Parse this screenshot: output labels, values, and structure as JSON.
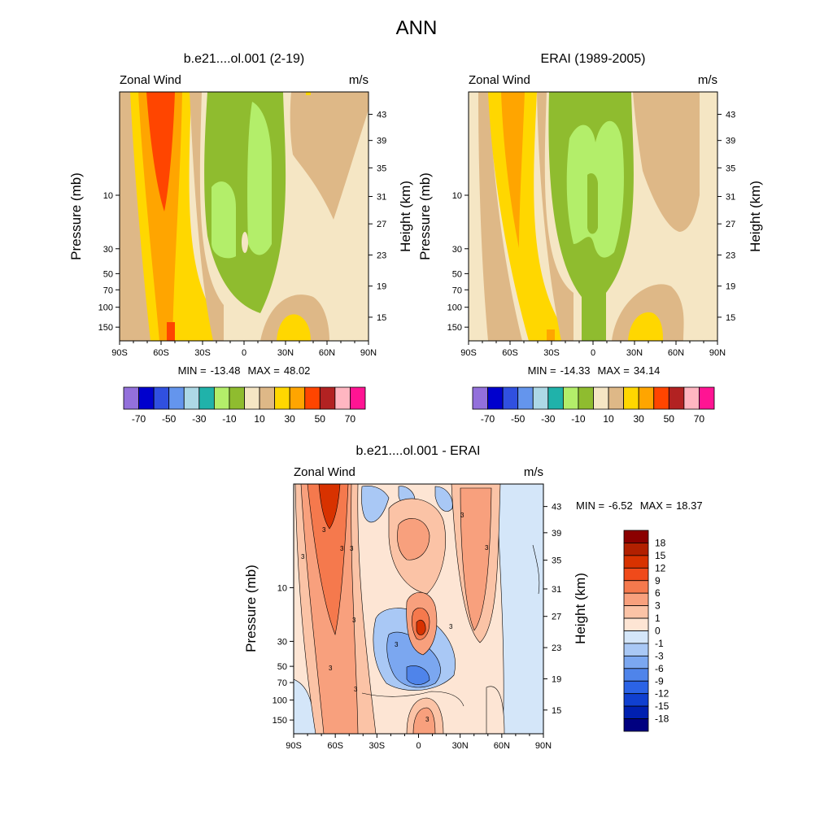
{
  "figure_title": "ANN",
  "contour_label": "3",
  "chart_data": [
    {
      "type": "heatmap",
      "panel_title": "b.e21....ol.001 (2-19)",
      "left_label": "Zonal Wind",
      "right_label": "m/s",
      "xlabel": "",
      "ylabel": "Pressure (mb)",
      "y2label": "Height (km)",
      "x_ticks": [
        "90S",
        "60S",
        "30S",
        "0",
        "30N",
        "60N",
        "90N"
      ],
      "y_ticks": [
        "10",
        "30",
        "50",
        "70",
        "100",
        "150"
      ],
      "y2_ticks": [
        "43",
        "39",
        "35",
        "31",
        "27",
        "23",
        "19",
        "15"
      ],
      "stats": {
        "min_label": "MIN =",
        "min": "-13.48",
        "max_label": "MAX =",
        "max": "48.02"
      },
      "colorbar": {
        "orientation": "horizontal",
        "labels": [
          "-70",
          "-50",
          "-30",
          "-10",
          "10",
          "30",
          "50",
          "70"
        ],
        "colors": [
          "#9370db",
          "#0000cd",
          "#3050e0",
          "#6495ed",
          "#add8e6",
          "#20b2aa",
          "#b3ee6a",
          "#8fbc2f",
          "#f5e6c4",
          "#deb887",
          "#ffd700",
          "#ffa500",
          "#ff4500",
          "#b22222",
          "#ffb6c1",
          "#ff1493"
        ]
      }
    },
    {
      "type": "heatmap",
      "panel_title": "ERAI (1989-2005)",
      "left_label": "Zonal Wind",
      "right_label": "m/s",
      "xlabel": "",
      "ylabel": "Pressure (mb)",
      "y2label": "Height (km)",
      "x_ticks": [
        "90S",
        "60S",
        "30S",
        "0",
        "30N",
        "60N",
        "90N"
      ],
      "y_ticks": [
        "10",
        "30",
        "50",
        "70",
        "100",
        "150"
      ],
      "y2_ticks": [
        "43",
        "39",
        "35",
        "31",
        "27",
        "23",
        "19",
        "15"
      ],
      "stats": {
        "min_label": "MIN =",
        "min": "-14.33",
        "max_label": "MAX =",
        "max": "34.14"
      },
      "colorbar": {
        "orientation": "horizontal",
        "labels": [
          "-70",
          "-50",
          "-30",
          "-10",
          "10",
          "30",
          "50",
          "70"
        ],
        "colors": [
          "#9370db",
          "#0000cd",
          "#3050e0",
          "#6495ed",
          "#add8e6",
          "#20b2aa",
          "#b3ee6a",
          "#8fbc2f",
          "#f5e6c4",
          "#deb887",
          "#ffd700",
          "#ffa500",
          "#ff4500",
          "#b22222",
          "#ffb6c1",
          "#ff1493"
        ]
      }
    },
    {
      "type": "heatmap",
      "panel_title": "b.e21....ol.001 - ERAI",
      "left_label": "Zonal Wind",
      "right_label": "m/s",
      "xlabel": "",
      "ylabel": "Pressure (mb)",
      "y2label": "Height (km)",
      "x_ticks": [
        "90S",
        "60S",
        "30S",
        "0",
        "30N",
        "60N",
        "90N"
      ],
      "y_ticks": [
        "10",
        "30",
        "50",
        "70",
        "100",
        "150"
      ],
      "y2_ticks": [
        "43",
        "39",
        "35",
        "31",
        "27",
        "23",
        "19",
        "15"
      ],
      "stats": {
        "min_label": "MIN =",
        "min": "-6.52",
        "max_label": "MAX =",
        "max": "18.37"
      },
      "colorbar": {
        "orientation": "vertical",
        "labels": [
          "18",
          "15",
          "12",
          "9",
          "6",
          "3",
          "1",
          "0",
          "-1",
          "-3",
          "-6",
          "-9",
          "-12",
          "-15",
          "-18"
        ],
        "colors": [
          "#8b0000",
          "#b22000",
          "#d83200",
          "#f04a1a",
          "#f5794d",
          "#f8a07d",
          "#fbc3a6",
          "#fde5d4",
          "#d4e6f9",
          "#a9c8f5",
          "#7ba7f0",
          "#4f84ea",
          "#2b63e6",
          "#1040d0",
          "#0020b0",
          "#000080"
        ]
      }
    }
  ]
}
